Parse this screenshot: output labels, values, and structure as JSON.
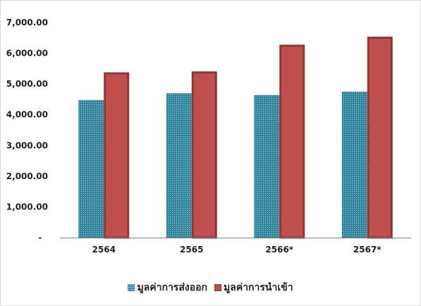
{
  "chart_data": {
    "type": "bar",
    "categories": [
      "2564",
      "2565",
      "2566*",
      "2567*"
    ],
    "series": [
      {
        "name": "มูลค่าการส่งออก",
        "values": [
          4480,
          4700,
          4640,
          4750
        ],
        "color": "#31859c"
      },
      {
        "name": "มูลค่าการนำเข้า",
        "values": [
          5380,
          5410,
          6280,
          6540
        ],
        "color": "#c0504d"
      }
    ],
    "ylim": [
      0,
      7000
    ],
    "yticks": [
      0,
      1000,
      2000,
      3000,
      4000,
      5000,
      6000,
      7000
    ],
    "ytick_labels": [
      "-",
      "1,000.00",
      "2,000.00",
      "3,000.00",
      "4,000.00",
      "5,000.00",
      "6,000.00",
      "7,000.00"
    ],
    "grid": false,
    "legend_position": "bottom"
  }
}
